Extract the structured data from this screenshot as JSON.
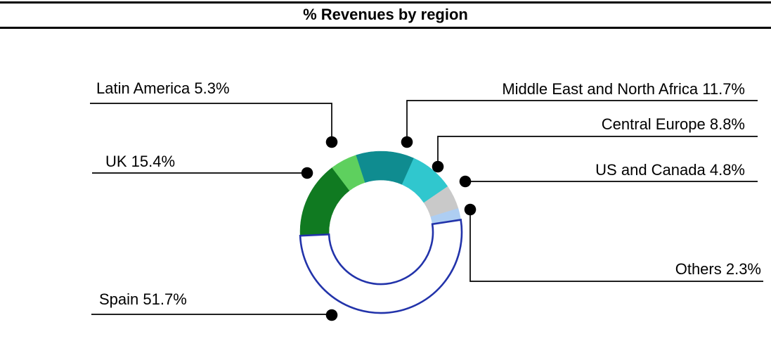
{
  "title": "% Revenues by region",
  "chart_data": {
    "type": "pie",
    "subtype": "donut",
    "title": "% Revenues by region",
    "unit": "%",
    "start_angle_deg": -18.1,
    "direction": "clockwise",
    "segments": [
      {
        "id": "middle-east-and-north-africa",
        "label": "Middle East and North Africa",
        "value": 11.7,
        "display": "Middle East and North Africa 11.7%",
        "color": "#0F8C90"
      },
      {
        "id": "central-europe",
        "label": "Central Europe",
        "value": 8.8,
        "display": "Central Europe 8.8%",
        "color": "#30C7CE"
      },
      {
        "id": "us-and-canada",
        "label": "US and Canada",
        "value": 4.8,
        "display": "US and Canada 4.8%",
        "color": "#C9C9C9"
      },
      {
        "id": "others",
        "label": "Others",
        "value": 2.3,
        "display": "Others 2.3%",
        "color": "#AECEF2"
      },
      {
        "id": "spain",
        "label": "Spain",
        "value": 51.7,
        "display": "Spain 51.7%",
        "color": "#FFFFFF",
        "outline_color": "#2233AA"
      },
      {
        "id": "uk",
        "label": "UK",
        "value": 15.4,
        "display": "UK 15.4%",
        "color": "#107A21"
      },
      {
        "id": "latin-america",
        "label": "Latin America",
        "value": 5.3,
        "display": "Latin America 5.3%",
        "color": "#5ED05E"
      }
    ],
    "leader_line_color": "#000000",
    "leader_dot_color": "#000000"
  }
}
